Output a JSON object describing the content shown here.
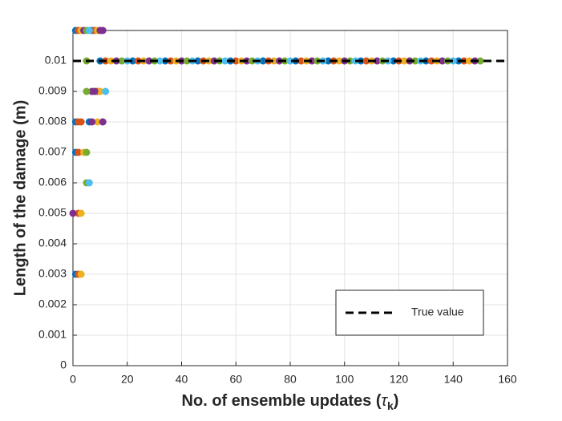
{
  "chart_data": {
    "type": "scatter",
    "xlabel": [
      "No. of ensemble updates (",
      "τ",
      "k",
      ")"
    ],
    "ylabel": "Length of the damage (m)",
    "xlim": [
      0,
      160
    ],
    "xticks": [
      0,
      20,
      40,
      60,
      80,
      100,
      120,
      140,
      160
    ],
    "ylim": [
      0,
      0.011
    ],
    "yticks": [
      0,
      0.001,
      0.002,
      0.003,
      0.004,
      0.005,
      0.006,
      0.007,
      0.008,
      0.009,
      0.01
    ],
    "grid": true,
    "legend": "bottom-right",
    "series": [
      {
        "color": "#0072BD",
        "x": [
          10,
          22,
          34,
          46,
          58,
          70,
          82,
          94,
          106,
          118,
          130,
          142,
          1,
          7,
          1,
          6,
          1,
          1
        ],
        "y": [
          0.01,
          0.01,
          0.01,
          0.01,
          0.01,
          0.01,
          0.01,
          0.01,
          0.01,
          0.01,
          0.01,
          0.01,
          0.011,
          0.011,
          0.008,
          0.008,
          0.007,
          0.003
        ]
      },
      {
        "color": "#D95319",
        "x": [
          12,
          24,
          36,
          48,
          60,
          72,
          84,
          96,
          108,
          120,
          132,
          144,
          2,
          8,
          9,
          2,
          3,
          2,
          2,
          2
        ],
        "y": [
          0.01,
          0.01,
          0.01,
          0.01,
          0.01,
          0.01,
          0.01,
          0.01,
          0.01,
          0.01,
          0.01,
          0.01,
          0.011,
          0.011,
          0.009,
          0.008,
          0.008,
          0.007,
          0.005,
          0.003
        ]
      },
      {
        "color": "#EDB120",
        "x": [
          14,
          26,
          38,
          50,
          62,
          74,
          86,
          98,
          110,
          122,
          134,
          146,
          3,
          9,
          10,
          9,
          4,
          3,
          3
        ],
        "y": [
          0.01,
          0.01,
          0.01,
          0.01,
          0.01,
          0.01,
          0.01,
          0.01,
          0.01,
          0.01,
          0.01,
          0.01,
          0.011,
          0.011,
          0.009,
          0.008,
          0.007,
          0.005,
          0.003
        ]
      },
      {
        "color": "#7E2F8E",
        "x": [
          16,
          28,
          40,
          52,
          64,
          76,
          88,
          100,
          112,
          124,
          136,
          148,
          4,
          10,
          11,
          7,
          8,
          7,
          11,
          0
        ],
        "y": [
          0.01,
          0.01,
          0.01,
          0.01,
          0.01,
          0.01,
          0.01,
          0.01,
          0.01,
          0.01,
          0.01,
          0.01,
          0.011,
          0.011,
          0.011,
          0.009,
          0.009,
          0.008,
          0.008,
          0.005
        ]
      },
      {
        "color": "#77AC30",
        "x": [
          18,
          30,
          42,
          54,
          66,
          78,
          90,
          102,
          114,
          126,
          138,
          150,
          5,
          5,
          5,
          5,
          5
        ],
        "y": [
          0.01,
          0.01,
          0.01,
          0.01,
          0.01,
          0.01,
          0.01,
          0.01,
          0.01,
          0.01,
          0.01,
          0.01,
          0.01,
          0.011,
          0.009,
          0.007,
          0.006
        ]
      },
      {
        "color": "#4DBEEE",
        "x": [
          20,
          32,
          44,
          56,
          68,
          80,
          92,
          104,
          116,
          128,
          140,
          6,
          12,
          6
        ],
        "y": [
          0.01,
          0.01,
          0.01,
          0.01,
          0.01,
          0.01,
          0.01,
          0.01,
          0.01,
          0.01,
          0.01,
          0.011,
          0.009,
          0.006
        ]
      },
      {
        "type": "line",
        "name": "True value",
        "color": "#000000",
        "style": "dashed",
        "x": [
          0,
          160
        ],
        "y": [
          0.01,
          0.01
        ]
      }
    ]
  }
}
